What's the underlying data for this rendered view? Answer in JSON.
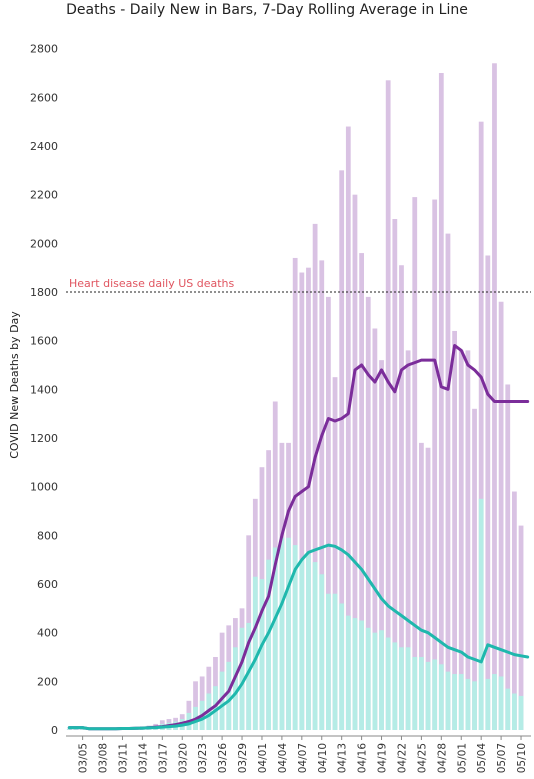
{
  "chart_data": {
    "type": "bar",
    "title": "Deaths - Daily New in Bars, 7-Day Rolling Average in Line",
    "ylabel": "COVID New Deaths by Day",
    "ylim": [
      0,
      2850
    ],
    "yticks": [
      0,
      200,
      400,
      600,
      800,
      1000,
      1200,
      1400,
      1600,
      1800,
      2000,
      2200,
      2400,
      2600,
      2800
    ],
    "x_tick_labels": [
      "03/05",
      "03/08",
      "03/11",
      "03/14",
      "03/17",
      "03/20",
      "03/23",
      "03/26",
      "03/29",
      "04/01",
      "04/04",
      "04/07",
      "04/10",
      "04/13",
      "04/16",
      "04/19",
      "04/22",
      "04/25",
      "04/28",
      "05/01",
      "05/04",
      "05/07",
      "05/10"
    ],
    "grid": false,
    "categories": [
      "03/03",
      "03/04",
      "03/05",
      "03/06",
      "03/07",
      "03/08",
      "03/09",
      "03/10",
      "03/11",
      "03/12",
      "03/13",
      "03/14",
      "03/15",
      "03/16",
      "03/17",
      "03/18",
      "03/19",
      "03/20",
      "03/21",
      "03/22",
      "03/23",
      "03/24",
      "03/25",
      "03/26",
      "03/27",
      "03/28",
      "03/29",
      "03/30",
      "03/31",
      "04/01",
      "04/02",
      "04/03",
      "04/04",
      "04/05",
      "04/06",
      "04/07",
      "04/08",
      "04/09",
      "04/10",
      "04/11",
      "04/12",
      "04/13",
      "04/14",
      "04/15",
      "04/16",
      "04/17",
      "04/18",
      "04/19",
      "04/20",
      "04/21",
      "04/22",
      "04/23",
      "04/24",
      "04/25",
      "04/26",
      "04/27",
      "04/28",
      "04/29",
      "04/30",
      "05/01",
      "05/02",
      "05/03",
      "05/04",
      "05/05",
      "05/06",
      "05/07",
      "05/08",
      "05/09",
      "05/10",
      "05/11"
    ],
    "series": [
      {
        "role": "bars-back",
        "color": "#d9c2e3",
        "values": [
          5,
          3,
          2,
          3,
          2,
          3,
          4,
          5,
          8,
          10,
          12,
          15,
          18,
          25,
          40,
          45,
          50,
          65,
          120,
          200,
          220,
          260,
          300,
          400,
          430,
          460,
          500,
          800,
          950,
          1080,
          1150,
          1350,
          1180,
          1180,
          1940,
          1880,
          1900,
          2080,
          1930,
          1780,
          1450,
          2300,
          2480,
          2200,
          1960,
          1780,
          1650,
          1520,
          2670,
          2100,
          1910,
          1560,
          2190,
          1180,
          1160,
          2180,
          2700,
          2040,
          1640,
          1560,
          1560,
          1320,
          2500,
          1950,
          2740,
          1760,
          1420,
          980,
          840,
          0
        ]
      },
      {
        "role": "bars-front",
        "color": "#b5ece6",
        "values": [
          4,
          3,
          2,
          2,
          2,
          2,
          3,
          4,
          6,
          8,
          10,
          12,
          14,
          18,
          25,
          30,
          35,
          45,
          70,
          95,
          120,
          150,
          180,
          240,
          280,
          340,
          420,
          440,
          630,
          620,
          700,
          750,
          790,
          790,
          760,
          700,
          720,
          690,
          640,
          560,
          560,
          520,
          470,
          460,
          450,
          420,
          400,
          410,
          380,
          360,
          340,
          340,
          300,
          300,
          280,
          290,
          270,
          240,
          230,
          230,
          210,
          200,
          950,
          210,
          230,
          220,
          170,
          150,
          140,
          0
        ]
      },
      {
        "role": "line",
        "name": "deaths-7day-avg",
        "color": "#7b2d9a",
        "values": [
          10,
          10,
          10,
          5,
          5,
          5,
          5,
          5,
          6,
          6,
          7,
          8,
          10,
          12,
          14,
          18,
          22,
          28,
          35,
          45,
          60,
          80,
          100,
          130,
          160,
          220,
          280,
          360,
          420,
          490,
          550,
          680,
          800,
          900,
          960,
          980,
          1000,
          1120,
          1210,
          1280,
          1270,
          1280,
          1300,
          1480,
          1500,
          1460,
          1430,
          1480,
          1430,
          1390,
          1480,
          1500,
          1510,
          1520,
          1520,
          1520,
          1410,
          1400,
          1580,
          1560,
          1500,
          1480,
          1450,
          1380,
          1350,
          1350,
          1350,
          1350,
          1350,
          1350
        ]
      },
      {
        "role": "line",
        "name": "heart-7day-avg",
        "color": "#1fb8ad",
        "values": [
          10,
          10,
          10,
          5,
          5,
          5,
          5,
          5,
          6,
          6,
          7,
          8,
          9,
          10,
          12,
          14,
          16,
          20,
          25,
          35,
          45,
          60,
          80,
          100,
          120,
          150,
          190,
          240,
          290,
          350,
          400,
          460,
          520,
          590,
          660,
          700,
          730,
          740,
          750,
          760,
          755,
          740,
          720,
          690,
          660,
          620,
          580,
          540,
          510,
          490,
          470,
          450,
          430,
          410,
          400,
          380,
          360,
          340,
          330,
          320,
          300,
          290,
          280,
          350,
          340,
          330,
          320,
          310,
          305,
          300
        ]
      }
    ],
    "annotations": [
      {
        "text": "Heart disease daily US deaths",
        "y": 1800,
        "color": "#e05560"
      }
    ]
  }
}
